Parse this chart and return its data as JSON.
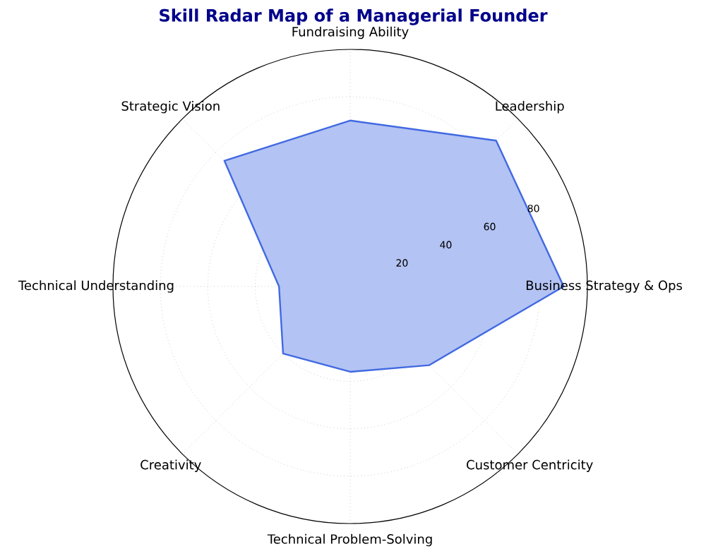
{
  "chart_data": {
    "type": "radar",
    "title": "Skill Radar Map of a Managerial Founder",
    "categories": [
      "Fundraising Ability",
      "Leadership",
      "Business Strategy & Ops",
      "Customer Centricity",
      "Technical Problem-Solving",
      "Creativity",
      "Technical Understanding",
      "Strategic Vision"
    ],
    "series": [
      {
        "color": "#4169e1",
        "values": [
          70,
          87,
          90,
          47,
          36,
          40,
          30,
          75
        ]
      }
    ],
    "ylim": [
      0,
      100
    ],
    "yticks": [
      20,
      40,
      60,
      80
    ],
    "grid": true
  }
}
